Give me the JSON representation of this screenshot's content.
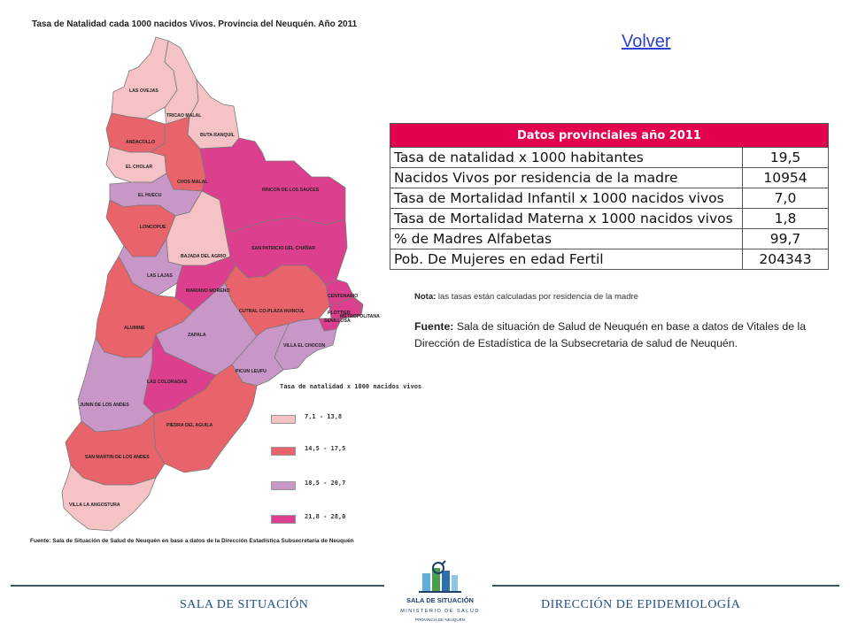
{
  "map": {
    "title": "Tasa de Natalidad cada 1000 nacidos Vivos. Provincia del Neuquén. Año 2011",
    "source": "Fuente: Sala de Situación de Salud de Neuquén en base a datos de la Dirección Estadística Subsecretaría de Neuquén",
    "legend_title": "Tasa de natalidad x 1000 nacidos vivos",
    "legend": [
      {
        "label": "7,1 - 13,8",
        "color": "#f5c3c6"
      },
      {
        "label": "14,5 - 17,5",
        "color": "#e8646a"
      },
      {
        "label": "18,5 - 20,7",
        "color": "#c996c8"
      },
      {
        "label": "21,8 - 28,0",
        "color": "#dd3f8f"
      }
    ],
    "departments": [
      {
        "name": "LAS OVEJAS",
        "color": "#f5c3c6"
      },
      {
        "name": "TRICAO MALAL",
        "color": "#f5c3c6"
      },
      {
        "name": "BUTA RANQUIL",
        "color": "#f5c3c6"
      },
      {
        "name": "ANDACOLLO",
        "color": "#e8646a"
      },
      {
        "name": "EL CHOLAR",
        "color": "#f5c3c6"
      },
      {
        "name": "CHOS MALAL",
        "color": "#e8646a"
      },
      {
        "name": "EL HUECU",
        "color": "#c996c8"
      },
      {
        "name": "RINCON DE LOS SAUCES",
        "color": "#dd3f8f"
      },
      {
        "name": "LONCOPUE",
        "color": "#e8646a"
      },
      {
        "name": "SAN PATRICIO DEL CHAÑAR",
        "color": "#dd3f8f"
      },
      {
        "name": "BAJADA DEL AGRIO",
        "color": "#f5c3c6"
      },
      {
        "name": "LAS LAJAS",
        "color": "#c996c8"
      },
      {
        "name": "MARIANO MORENO",
        "color": "#dd3f8f"
      },
      {
        "name": "CENTENARIO",
        "color": "#dd3f8f"
      },
      {
        "name": "CUTRAL CO-PLAZA HUINCUL",
        "color": "#e8646a"
      },
      {
        "name": "PLOTTIER",
        "color": "#dd3f8f"
      },
      {
        "name": "SENILLOSA",
        "color": "#dd3f8f"
      },
      {
        "name": "METROPOLITANA",
        "color": "#dd3f8f"
      },
      {
        "name": "ALUMINE",
        "color": "#e8646a"
      },
      {
        "name": "ZAPALA",
        "color": "#c996c8"
      },
      {
        "name": "VILLA EL CHOCON",
        "color": "#c996c8"
      },
      {
        "name": "PICUN LEUFU",
        "color": "#c996c8"
      },
      {
        "name": "LAS COLORADAS",
        "color": "#dd3f8f"
      },
      {
        "name": "JUNIN DE LOS ANDES",
        "color": "#c996c8"
      },
      {
        "name": "PIEDRA DEL AGUILA",
        "color": "#e8646a"
      },
      {
        "name": "SAN MARTIN DE LOS ANDES",
        "color": "#e8646a"
      },
      {
        "name": "VILLA LA ANGOSTURA",
        "color": "#f5c3c6"
      }
    ]
  },
  "volver": "Volver",
  "table": {
    "header": "Datos provinciales año 2011",
    "rows": [
      {
        "label": "Tasa de natalidad x 1000 habitantes",
        "value": "19,5"
      },
      {
        "label": "Nacidos Vivos por residencia de la madre",
        "value": "10954"
      },
      {
        "label": "Tasa de Mortalidad Infantil x 1000 nacidos vivos",
        "value": "7,0"
      },
      {
        "label": "Tasa de Mortalidad Materna x 1000 nacidos vivos",
        "value": "1,8"
      },
      {
        "label": "% de Madres Alfabetas",
        "value": "99,7"
      },
      {
        "label": "Pob. De Mujeres en edad Fertil",
        "value": "204343"
      }
    ]
  },
  "nota": {
    "prefix": "Nota:",
    "text": " las tasas  están calculadas por residencia de la madre"
  },
  "fuente": {
    "prefix": "Fuente:",
    "text": " Sala de situación de Salud de Neuquén en base a datos de Vitales de la Dirección de Estadística de la Subsecretaria de salud de Neuquén."
  },
  "footer": {
    "left": "SALA DE SITUACIÓN",
    "right": "DIRECCIÓN DE EPIDEMIOLOGÍA",
    "logo_title": "SALA DE SITUACIÓN",
    "logo_sub": "MINISTERIO DE SALUD",
    "logo_sub2": "PROVINCIA DE NEUQUÉN"
  }
}
